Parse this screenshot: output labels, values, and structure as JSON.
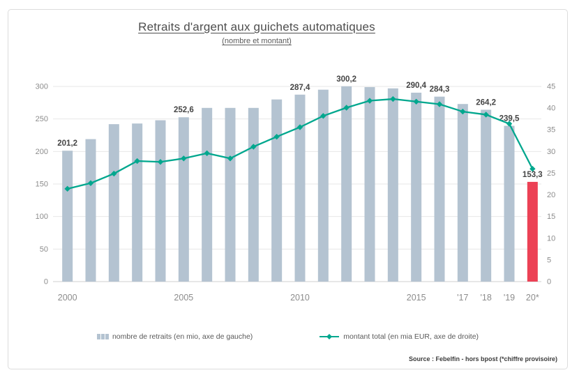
{
  "title": "Retraits d'argent aux guichets automatiques",
  "subtitle": "(nombre et montant)",
  "source": "Source : Febelfin - hors bpost (*chiffre provisoire)",
  "legend": {
    "bars_label": "nombre de retraits (en mio, axe de gauche)",
    "line_label": "montant total (en mia EUR, axe de droite)"
  },
  "colors": {
    "bar": "#b4c3d1",
    "bar_highlight": "#ec4155",
    "line": "#00a78e",
    "grid": "#e7e7e7",
    "axis_line": "#cfcfcf",
    "tick_text": "#8c8c8c",
    "value_label_text": "#454545"
  },
  "chart_data": {
    "type": "bar",
    "title": "Retraits d'argent aux guichets automatiques (nombre et montant)",
    "categories": [
      "2000",
      "2001",
      "2002",
      "2003",
      "2004",
      "2005",
      "2006",
      "2007",
      "2008",
      "2009",
      "2010",
      "2011",
      "2012",
      "2013",
      "2014",
      "2015",
      "2016",
      "2017",
      "2018",
      "2019",
      "2020"
    ],
    "x_tick_labels": {
      "0": "2000",
      "5": "2005",
      "10": "2010",
      "15": "2015",
      "17": "'17",
      "18": "'18",
      "19": "'19",
      "20": "20*"
    },
    "series": [
      {
        "name": "nombre de retraits (en mio, axe de gauche)",
        "type": "bar",
        "axis": "left",
        "values": [
          201.2,
          219,
          242,
          243,
          248,
          252.6,
          267,
          267,
          267,
          280,
          287.4,
          295,
          300.2,
          299,
          297,
          290.4,
          284.3,
          273,
          264.2,
          239.5,
          153.3
        ],
        "highlight_index": 20,
        "value_labels": {
          "0": "201,2",
          "5": "252,6",
          "10": "287,4",
          "12": "300,2",
          "15": "290,4",
          "16": "284,3",
          "18": "264,2",
          "19": "239,5",
          "20": "153,3"
        }
      },
      {
        "name": "montant total (en mia EUR, axe de droite)",
        "type": "line",
        "axis": "right",
        "values": [
          21.4,
          22.7,
          24.9,
          27.8,
          27.6,
          28.4,
          29.6,
          28.4,
          31.1,
          33.4,
          35.6,
          38.2,
          40.1,
          41.7,
          42.1,
          41.5,
          40.9,
          39.2,
          38.5,
          36.4,
          26.0
        ]
      }
    ],
    "left_axis": {
      "min": 0,
      "max": 300,
      "step": 50,
      "ticks": [
        0,
        50,
        100,
        150,
        200,
        250,
        300
      ]
    },
    "right_axis": {
      "min": 0,
      "max": 45,
      "step": 5,
      "ticks": [
        0,
        5,
        10,
        15,
        20,
        25,
        30,
        35,
        40,
        45
      ]
    },
    "grid": true,
    "legend_position": "bottom"
  }
}
